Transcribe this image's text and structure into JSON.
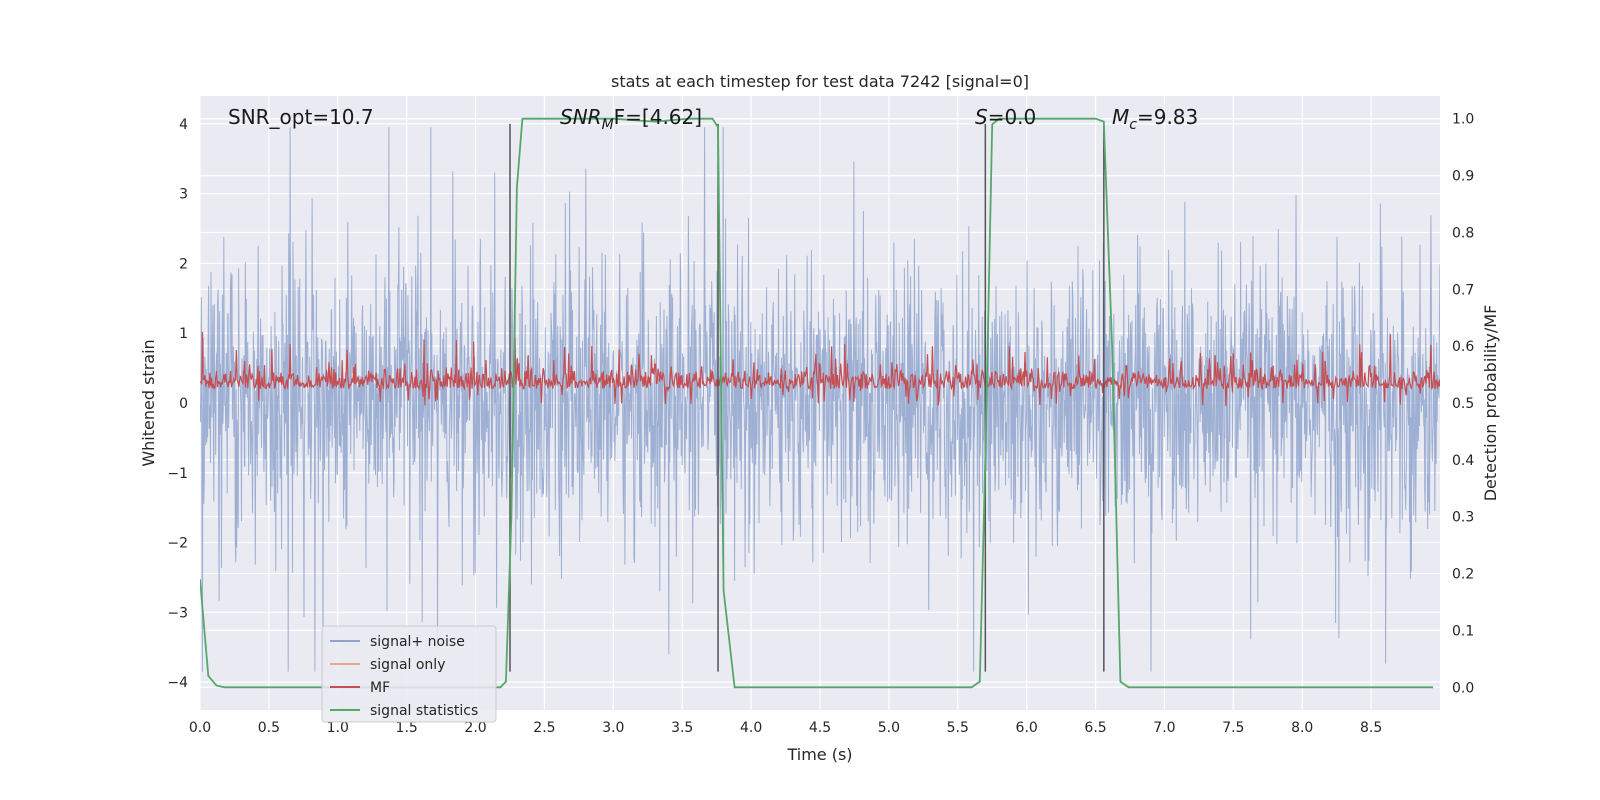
{
  "chart_data": {
    "type": "line",
    "title": "stats at each timestep for test data 7242 [signal=0]",
    "xlabel": "Time (s)",
    "ylabel_left": "Whitened strain",
    "ylabel_right": "Detection probability/MF",
    "xlim": [
      0.0,
      9.0
    ],
    "ylim_left": [
      -4.4,
      4.4
    ],
    "ylim_right": [
      -0.04,
      1.04
    ],
    "xticks": [
      "0.0",
      "0.5",
      "1.0",
      "1.5",
      "2.0",
      "2.5",
      "3.0",
      "3.5",
      "4.0",
      "4.5",
      "5.0",
      "5.5",
      "6.0",
      "6.5",
      "7.0",
      "7.5",
      "8.0",
      "8.5"
    ],
    "xtick_values": [
      0.0,
      0.5,
      1.0,
      1.5,
      2.0,
      2.5,
      3.0,
      3.5,
      4.0,
      4.5,
      5.0,
      5.5,
      6.0,
      6.5,
      7.0,
      7.5,
      8.0,
      8.5
    ],
    "yticks_left": [
      "4",
      "3",
      "2",
      "1",
      "0",
      "−1",
      "−2",
      "−3",
      "−4"
    ],
    "ytick_values_left": [
      4,
      3,
      2,
      1,
      0,
      -1,
      -2,
      -3,
      -4
    ],
    "yticks_right": [
      "1.0",
      "0.9",
      "0.8",
      "0.7",
      "0.6",
      "0.5",
      "0.4",
      "0.3",
      "0.2",
      "0.1",
      "0.0"
    ],
    "ytick_values_right": [
      1.0,
      0.9,
      0.8,
      0.7,
      0.6,
      0.5,
      0.4,
      0.3,
      0.2,
      0.1,
      0.0
    ],
    "grid": true,
    "legend": {
      "placement": "lower-left",
      "entries": [
        {
          "label": "signal+ noise",
          "color": "#8fa4cc"
        },
        {
          "label": "signal only",
          "color": "#e8a98c"
        },
        {
          "label": "MF",
          "color": "#c44e52"
        },
        {
          "label": "signal statistics",
          "color": "#55a868"
        }
      ]
    },
    "annotations": [
      {
        "id": "snr-opt",
        "text": "SNR_opt=10.7",
        "x": 0.2,
        "y": 4.12
      },
      {
        "id": "snr-mf",
        "text": "SNRMF=[4.62]",
        "main": "SNR",
        "sub": "M",
        "tail": "F=[4.62]",
        "x": 2.6,
        "y": 4.12
      },
      {
        "id": "s-val",
        "text": "S=0.0",
        "main": "S",
        "tail": "=0.0",
        "x": 5.6,
        "y": 4.12
      },
      {
        "id": "mc-val",
        "text": "Mc=9.83",
        "main": "M",
        "sub": "c",
        "tail": "=9.83",
        "x": 6.6,
        "y": 4.12
      }
    ],
    "vertical_lines": [
      2.25,
      3.76,
      5.7,
      6.56
    ],
    "vertical_line_range": [
      -3.85,
      4.0
    ],
    "series": [
      {
        "name": "signal+ noise",
        "axis": "left",
        "color": "#8fa4cc",
        "description": "dense noise band roughly between -1.6 and 1.7 with spikes to about ±3.6"
      },
      {
        "name": "signal only",
        "axis": "left",
        "color": "#e8a98c",
        "values": []
      },
      {
        "name": "MF",
        "axis": "right",
        "color": "#c44e52",
        "description": "noisy band roughly 0.49 to 0.58, occasional spikes to 0.62"
      },
      {
        "name": "signal statistics",
        "axis": "right",
        "color": "#55a868",
        "x": [
          0.0,
          0.06,
          0.12,
          0.18,
          2.18,
          2.22,
          2.26,
          2.3,
          2.34,
          3.0,
          3.3,
          3.55,
          3.72,
          3.76,
          3.8,
          3.88,
          5.6,
          5.66,
          5.7,
          5.75,
          5.8,
          6.5,
          6.56,
          6.62,
          6.68,
          6.74,
          8.95
        ],
        "values": [
          0.19,
          0.02,
          0.003,
          0.0,
          0.0,
          0.01,
          0.3,
          0.88,
          1.0,
          1.0,
          0.995,
          1.0,
          1.0,
          0.985,
          0.17,
          0.0,
          0.0,
          0.01,
          0.4,
          0.99,
          1.0,
          1.0,
          0.995,
          0.6,
          0.01,
          0.0,
          0.0
        ]
      }
    ]
  }
}
